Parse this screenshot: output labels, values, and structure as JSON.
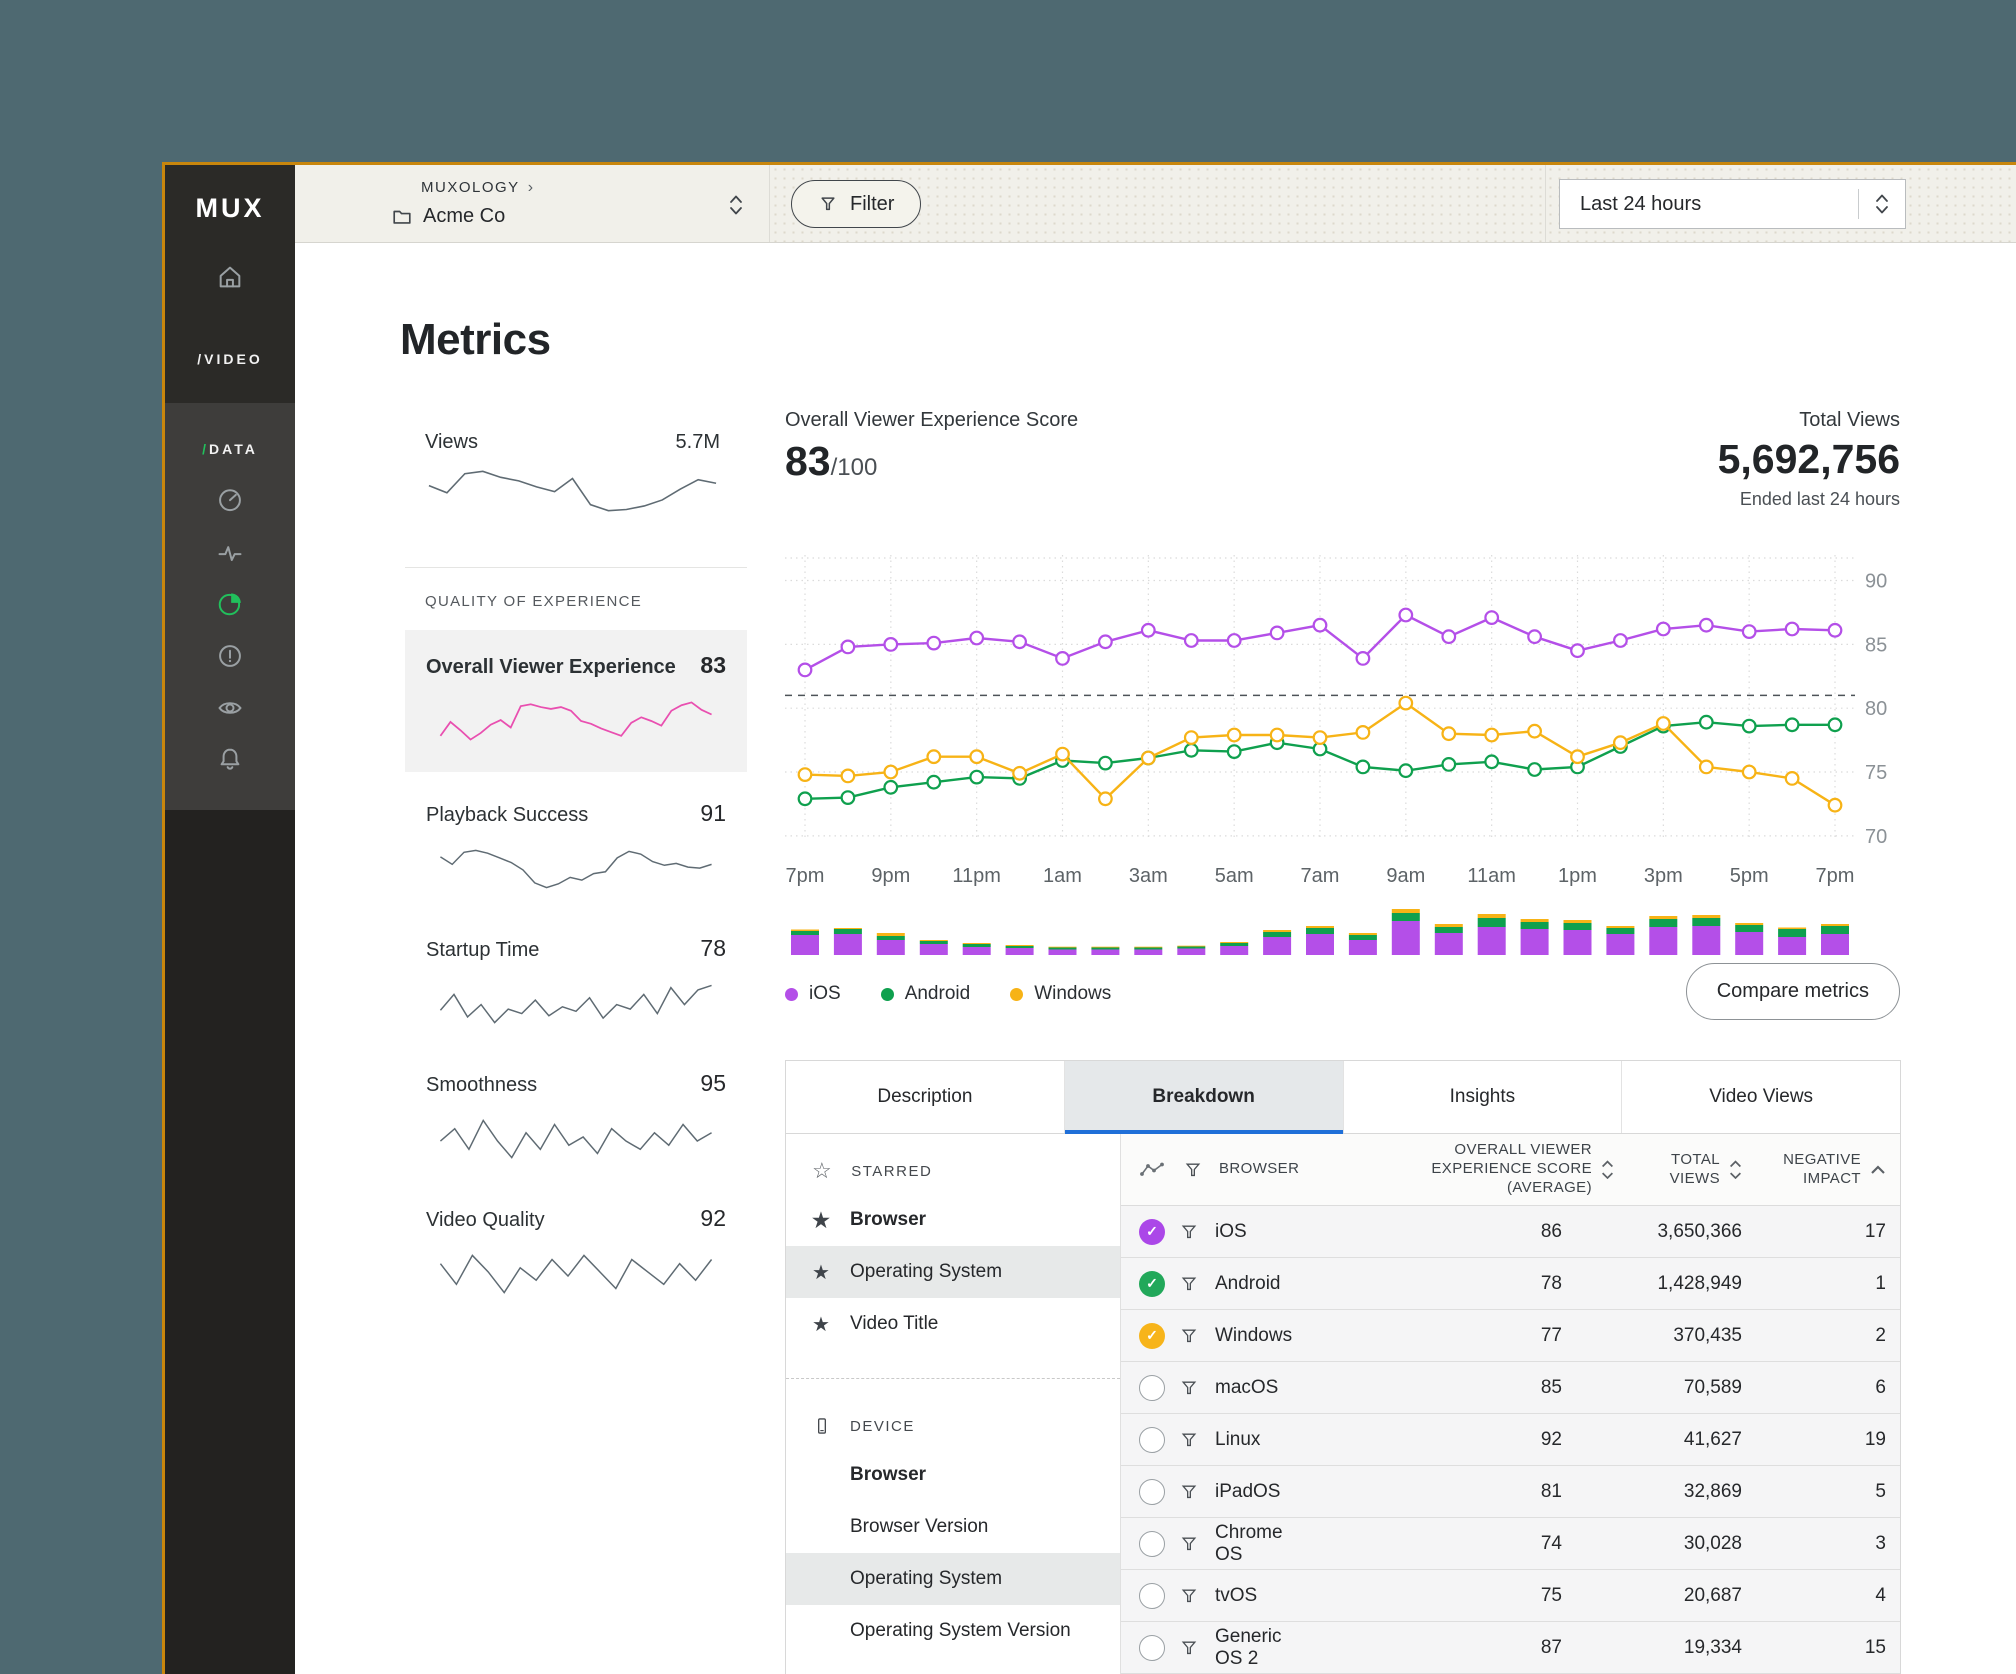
{
  "window": {
    "brand": "MUX",
    "nav_video_label": "/VIDEO",
    "nav_data_slash": "/",
    "nav_data_label": "DATA"
  },
  "topbar": {
    "org": "MUXOLOGY",
    "org_chevron": "›",
    "env": "Acme Co",
    "filter_label": "Filter",
    "time_range": "Last 24 hours"
  },
  "page": {
    "title": "Metrics"
  },
  "metrics_panel": {
    "views": {
      "label": "Views",
      "value": "5.7M",
      "spark": [
        48,
        42,
        58,
        60,
        55,
        52,
        47,
        43,
        54,
        32,
        27,
        28,
        31,
        36,
        45,
        53,
        50
      ]
    },
    "qoe_header": "QUALITY OF EXPERIENCE",
    "qoe": [
      {
        "label": "Overall Viewer Experience",
        "value": "83",
        "active": true,
        "color": "#e94fb0",
        "spark": [
          30,
          45,
          36,
          26,
          33,
          42,
          47,
          39,
          62,
          64,
          61,
          59,
          61,
          57,
          46,
          43,
          38,
          34,
          30,
          44,
          50,
          46,
          41,
          57,
          63,
          66,
          58,
          53
        ]
      },
      {
        "label": "Playback Success",
        "value": "91",
        "active": false,
        "color": "#5f6b73",
        "spark": [
          58,
          50,
          63,
          65,
          62,
          57,
          52,
          44,
          30,
          25,
          29,
          36,
          33,
          40,
          42,
          57,
          64,
          61,
          53,
          49,
          51,
          47,
          46,
          50
        ]
      },
      {
        "label": "Startup Time",
        "value": "78",
        "active": false,
        "color": "#5f6b73",
        "spark": [
          42,
          56,
          36,
          47,
          31,
          43,
          39,
          51,
          37,
          45,
          41,
          53,
          35,
          47,
          43,
          56,
          39,
          62,
          47,
          60,
          64
        ]
      },
      {
        "label": "Smoothness",
        "value": "95",
        "active": false,
        "color": "#5f6b73",
        "spark": [
          50,
          53,
          48,
          55,
          50,
          46,
          52,
          48,
          54,
          49,
          51,
          47,
          53,
          50,
          48,
          52,
          49,
          54,
          50,
          52
        ]
      },
      {
        "label": "Video Quality",
        "value": "92",
        "active": false,
        "color": "#5f6b73",
        "spark": [
          52,
          47,
          54,
          50,
          45,
          51,
          48,
          53,
          49,
          54,
          50,
          46,
          53,
          50,
          47,
          52,
          48,
          53
        ]
      }
    ]
  },
  "chart_header": {
    "score_label": "Overall Viewer Experience Score",
    "score_value": "83",
    "score_suffix": "/100",
    "total_views_label": "Total Views",
    "total_views_value": "5,692,756",
    "total_views_caption": "Ended last 24 hours"
  },
  "chart_data": {
    "type": "line",
    "x_tick_labels": [
      "7pm",
      "9pm",
      "11pm",
      "1am",
      "3am",
      "5am",
      "7am",
      "9am",
      "11am",
      "1pm",
      "3pm",
      "5pm",
      "7pm"
    ],
    "points_per_series": 25,
    "ylim": [
      68.5,
      92
    ],
    "yticks": [
      90,
      85,
      80,
      75,
      70
    ],
    "threshold": 81,
    "grid": "dotted",
    "legend_position": "bottom-left",
    "series": [
      {
        "name": "iOS",
        "color": "#b44fe8",
        "values": [
          83.0,
          84.8,
          85.0,
          85.1,
          85.5,
          85.2,
          83.9,
          85.2,
          86.1,
          85.3,
          85.3,
          85.9,
          86.5,
          83.9,
          87.3,
          85.6,
          87.1,
          85.6,
          84.5,
          85.3,
          86.2,
          86.5,
          86.0,
          86.2,
          86.1
        ]
      },
      {
        "name": "Android",
        "color": "#0fa04e",
        "values": [
          72.9,
          73.0,
          73.8,
          74.2,
          74.6,
          74.5,
          75.9,
          75.7,
          76.1,
          76.7,
          76.6,
          77.3,
          76.8,
          75.4,
          75.1,
          75.6,
          75.8,
          75.2,
          75.4,
          77.0,
          78.6,
          78.9,
          78.6,
          78.7,
          78.7
        ]
      },
      {
        "name": "Windows",
        "color": "#f7b316",
        "values": [
          74.8,
          74.7,
          75.0,
          76.2,
          76.2,
          74.9,
          76.4,
          72.9,
          76.1,
          77.7,
          77.9,
          77.9,
          77.7,
          78.1,
          80.4,
          78.0,
          77.9,
          78.2,
          76.2,
          77.3,
          78.8,
          75.4,
          75.0,
          74.5,
          72.4
        ]
      }
    ],
    "volume_bars": {
      "stack_order": [
        "iOS",
        "Android",
        "Windows"
      ],
      "values": [
        [
          20,
          4,
          1.5
        ],
        [
          21,
          5,
          1
        ],
        [
          15,
          4,
          3
        ],
        [
          11,
          3,
          1
        ],
        [
          8,
          3,
          1
        ],
        [
          7,
          2,
          1
        ],
        [
          5.5,
          2,
          0.8
        ],
        [
          5.5,
          2,
          0.8
        ],
        [
          5.5,
          2,
          0.8
        ],
        [
          6.5,
          2,
          0.8
        ],
        [
          9,
          3,
          1
        ],
        [
          18,
          5,
          2
        ],
        [
          21,
          6,
          2
        ],
        [
          15,
          5,
          2
        ],
        [
          34,
          8,
          4
        ],
        [
          22,
          6,
          3
        ],
        [
          28,
          9,
          4
        ],
        [
          26,
          7,
          3
        ],
        [
          25,
          7,
          3
        ],
        [
          21,
          6,
          2
        ],
        [
          28,
          8,
          3
        ],
        [
          29,
          8,
          3
        ],
        [
          23,
          7,
          2
        ],
        [
          18,
          8,
          1.5
        ],
        [
          21,
          8,
          2
        ]
      ]
    }
  },
  "legend": [
    {
      "label": "iOS",
      "color": "#b44fe8"
    },
    {
      "label": "Android",
      "color": "#0fa04e"
    },
    {
      "label": "Windows",
      "color": "#f7b316"
    }
  ],
  "compare_button": "Compare metrics",
  "tabs": [
    {
      "label": "Description",
      "active": false
    },
    {
      "label": "Breakdown",
      "active": true
    },
    {
      "label": "Insights",
      "active": false
    },
    {
      "label": "Video Views",
      "active": false
    }
  ],
  "dimension_panel": {
    "sections": [
      {
        "header": "STARRED",
        "icon": "star-outline",
        "items": [
          {
            "label": "Browser",
            "starred": true,
            "bold": true,
            "selected": false
          },
          {
            "label": "Operating System",
            "starred": true,
            "bold": false,
            "selected": true
          },
          {
            "label": "Video Title",
            "starred": true,
            "bold": false,
            "selected": false
          }
        ]
      },
      {
        "header": "DEVICE",
        "icon": "device",
        "items": [
          {
            "label": "Browser",
            "starred": false,
            "bold": true,
            "selected": false
          },
          {
            "label": "Browser Version",
            "starred": false,
            "bold": false,
            "selected": false
          },
          {
            "label": "Operating System",
            "starred": false,
            "bold": false,
            "selected": true
          },
          {
            "label": "Operating System Version",
            "starred": false,
            "bold": false,
            "selected": false
          }
        ]
      }
    ]
  },
  "breakdown_table": {
    "columns": {
      "name": "BROWSER",
      "score": "OVERALL VIEWER EXPERIENCE SCORE (AVERAGE)",
      "views": "TOTAL VIEWS",
      "impact": "NEGATIVE IMPACT"
    },
    "rows": [
      {
        "name": "iOS",
        "checked": true,
        "check_color": "#ab47e8",
        "score": "86",
        "views": "3,650,366",
        "impact": "17"
      },
      {
        "name": "Android",
        "checked": true,
        "check_color": "#22a85a",
        "score": "78",
        "views": "1,428,949",
        "impact": "1"
      },
      {
        "name": "Windows",
        "checked": true,
        "check_color": "#f7b41a",
        "score": "77",
        "views": "370,435",
        "impact": "2"
      },
      {
        "name": "macOS",
        "checked": false,
        "check_color": "",
        "score": "85",
        "views": "70,589",
        "impact": "6"
      },
      {
        "name": "Linux",
        "checked": false,
        "check_color": "",
        "score": "92",
        "views": "41,627",
        "impact": "19"
      },
      {
        "name": "iPadOS",
        "checked": false,
        "check_color": "",
        "score": "81",
        "views": "32,869",
        "impact": "5"
      },
      {
        "name": "Chrome OS",
        "checked": false,
        "check_color": "",
        "score": "74",
        "views": "30,028",
        "impact": "3"
      },
      {
        "name": "tvOS",
        "checked": false,
        "check_color": "",
        "score": "75",
        "views": "20,687",
        "impact": "4"
      },
      {
        "name": "Generic OS 2",
        "checked": false,
        "check_color": "",
        "score": "87",
        "views": "19,334",
        "impact": "15"
      }
    ]
  }
}
